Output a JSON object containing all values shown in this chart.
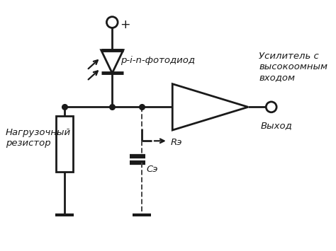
{
  "bg_color": "#ffffff",
  "line_color": "#1a1a1a",
  "lw": 2.0,
  "labels": {
    "pin_diode": "p-i-n-фотодиод",
    "amplifier": "Усилитель с\nвысокоомным\nвходом",
    "load_resistor": "Нагрузочный\nрезистор",
    "output": "Выход",
    "Re": "Rэ",
    "Ce": "Cэ",
    "plus": "+"
  },
  "font_size": 9.5,
  "fig_w": 4.74,
  "fig_h": 3.55,
  "dpi": 100
}
